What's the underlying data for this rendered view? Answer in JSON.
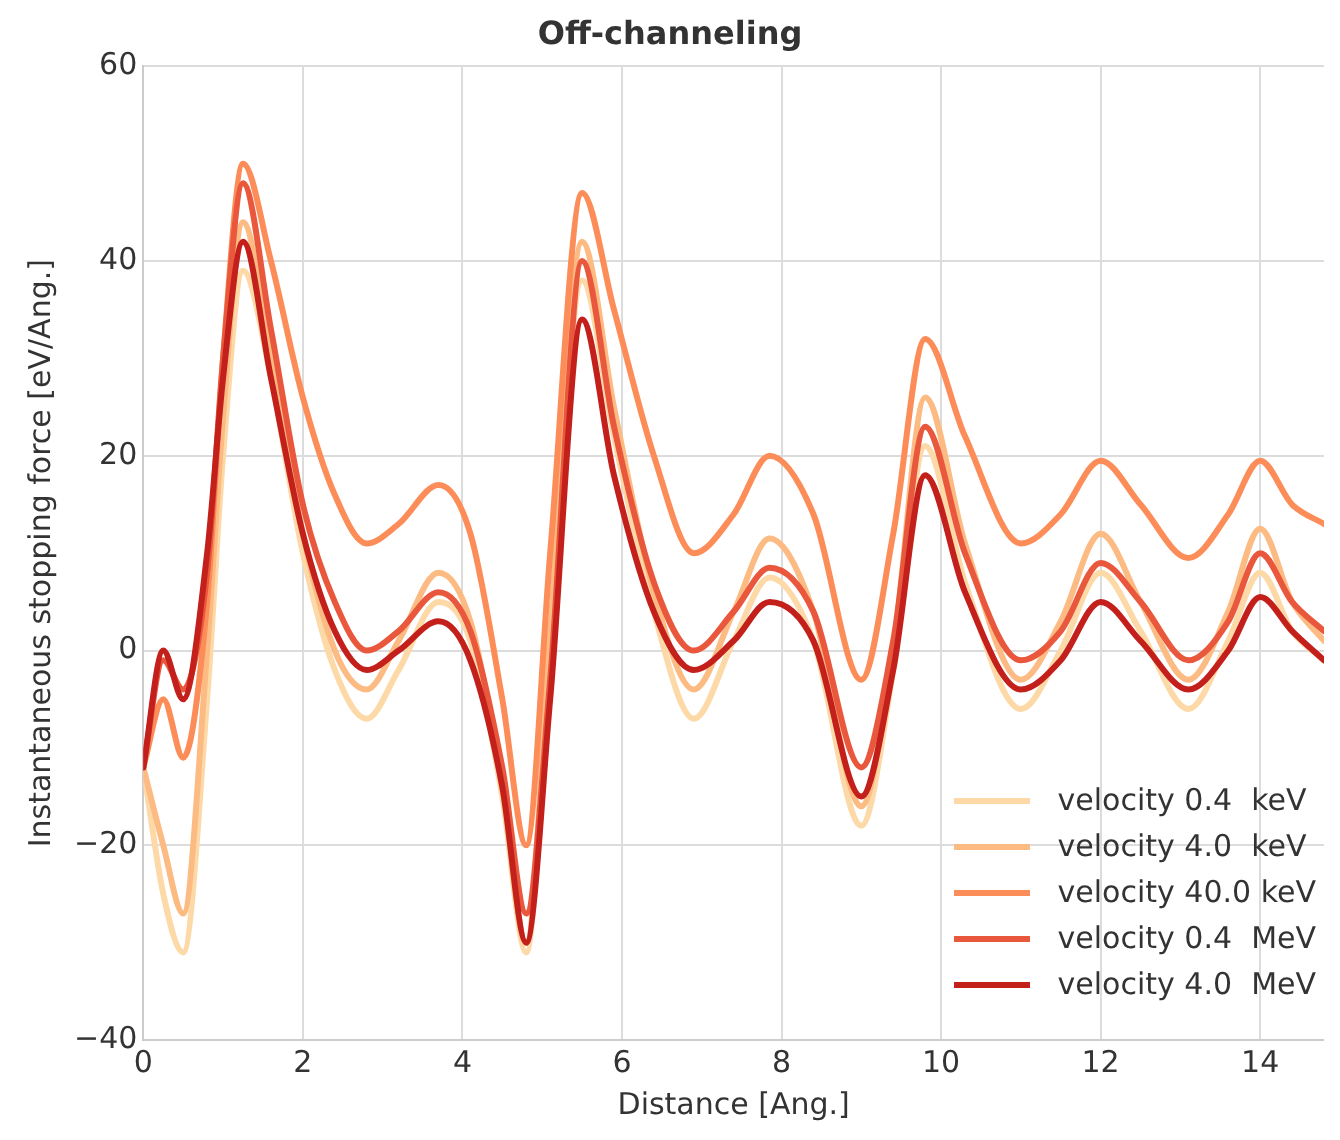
{
  "chart_data": {
    "type": "line",
    "title": "Off-channeling",
    "xlabel": "Distance [Ang.]",
    "ylabel": "Instantaneous stopping force [eV/Ang.]",
    "x": [
      0,
      0.25,
      0.5,
      0.8,
      1.0,
      1.25,
      1.6,
      2.0,
      2.4,
      2.8,
      3.2,
      3.7,
      4.1,
      4.5,
      4.8,
      5.1,
      5.5,
      5.9,
      6.4,
      6.9,
      7.4,
      7.85,
      8.4,
      9.0,
      9.4,
      9.8,
      10.3,
      11.0,
      11.5,
      12.0,
      12.5,
      13.1,
      13.6,
      14.0,
      14.4,
      14.8
    ],
    "series": [
      {
        "name": "velocity 0.4  keV",
        "color": "#fdd9a8",
        "values": [
          -12,
          -25,
          -31,
          -5,
          20,
          39,
          28,
          10,
          -2,
          -7,
          -2,
          5,
          1,
          -15,
          -31,
          0,
          38,
          22,
          4,
          -7,
          1,
          7.5,
          1,
          -18,
          -2,
          21,
          7,
          -6,
          0,
          8,
          2,
          -6,
          1,
          8,
          2,
          -1
        ]
      },
      {
        "name": "velocity 4.0  keV",
        "color": "#fdbb84",
        "values": [
          -12,
          -20,
          -27,
          0,
          24,
          44,
          30,
          12,
          0,
          -4,
          1,
          8,
          3,
          -14,
          -30,
          2,
          42,
          25,
          6,
          -4,
          4,
          11.5,
          4,
          -16,
          0,
          26,
          11,
          -3,
          3,
          12,
          5,
          -3,
          4,
          12.5,
          5,
          1
        ]
      },
      {
        "name": "velocity 40.0 keV",
        "color": "#fc8d59",
        "values": [
          -12,
          -5,
          -11,
          5,
          30,
          50,
          40,
          26,
          16,
          11,
          13,
          17,
          12,
          -5,
          -20,
          10,
          47,
          35,
          20,
          10,
          14,
          20,
          14,
          -3,
          12,
          32,
          22,
          11,
          14,
          19.5,
          15,
          9.5,
          14,
          19.5,
          15,
          13
        ]
      },
      {
        "name": "velocity 0.4  MeV",
        "color": "#e9583c",
        "values": [
          -12,
          -1,
          -4,
          8,
          30,
          48,
          33,
          15,
          5,
          0,
          2,
          6,
          2,
          -12,
          -27,
          -3,
          40,
          23,
          7,
          0,
          4,
          8.5,
          4,
          -12,
          1,
          23,
          10,
          -1,
          2,
          9,
          5,
          -1,
          3,
          10,
          5,
          2
        ]
      },
      {
        "name": "velocity 4.0  MeV",
        "color": "#c3201c",
        "values": [
          -12,
          0,
          -5,
          10,
          28,
          42,
          28,
          12,
          2,
          -2,
          0,
          3,
          -1,
          -14,
          -30,
          -5,
          34,
          18,
          4,
          -2,
          1,
          5,
          1,
          -15,
          -2,
          18,
          6,
          -4,
          -1,
          5,
          1,
          -4,
          0,
          5.5,
          2,
          -1
        ]
      }
    ],
    "xlim": [
      0,
      14.8
    ],
    "xticks": [
      0,
      2,
      4,
      6,
      8,
      10,
      12,
      14
    ],
    "ylim": [
      -40,
      60
    ],
    "yticks": [
      {
        "value": -40,
        "label": "−40"
      },
      {
        "value": -20,
        "label": "−20"
      },
      0,
      20,
      40,
      60
    ],
    "grid": true,
    "legend": "bottom right",
    "marker": "none",
    "line_style": "solid"
  }
}
